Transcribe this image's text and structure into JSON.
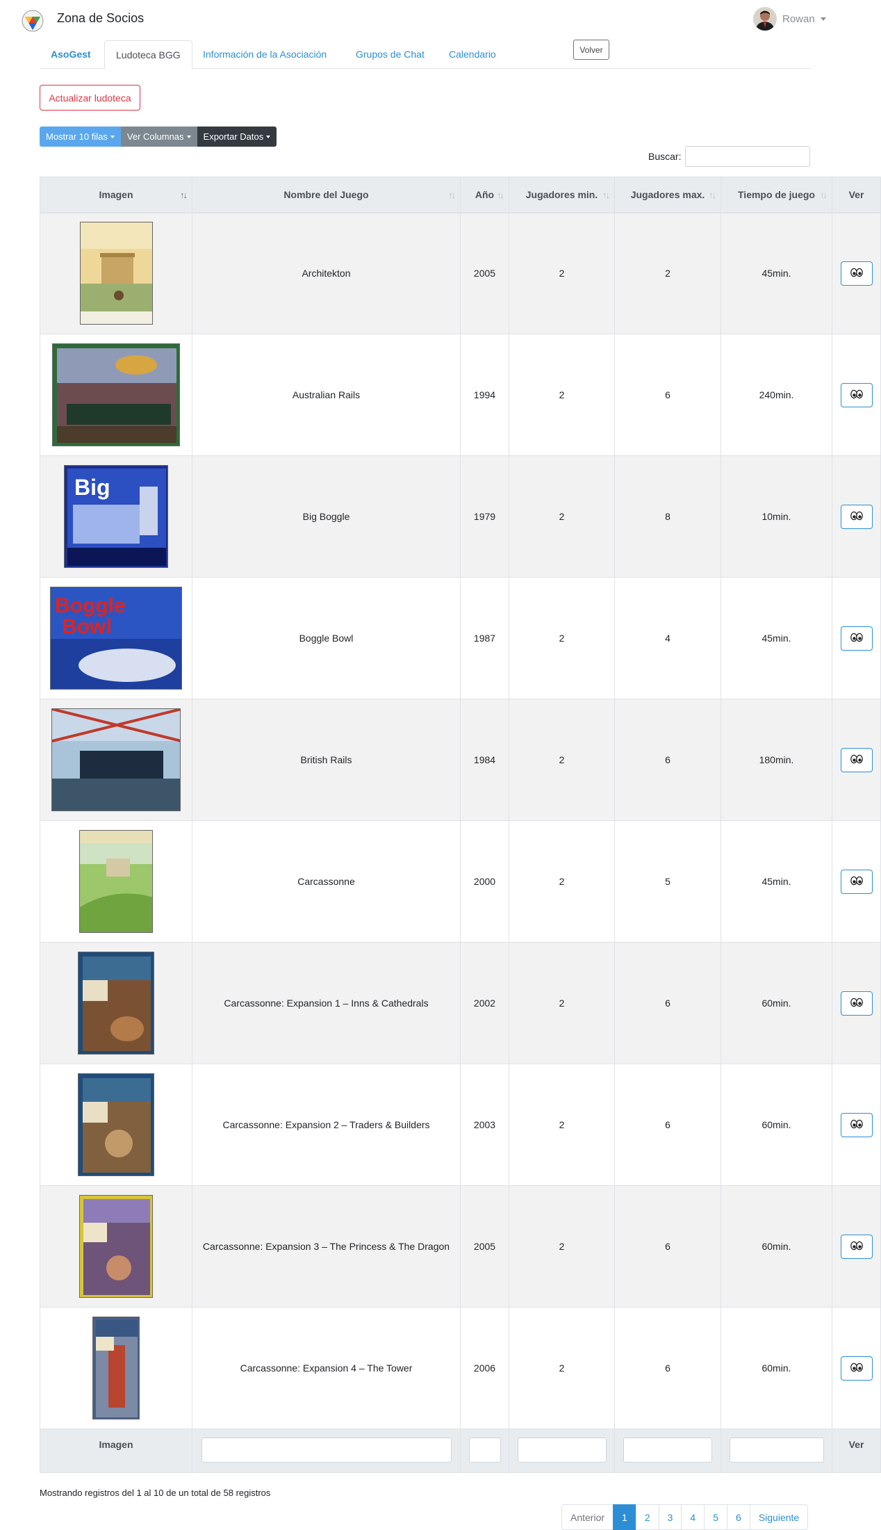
{
  "app": {
    "title": "Zona de Socios"
  },
  "user": {
    "name": "Rowan"
  },
  "tabs": [
    {
      "label": "AsoGest",
      "active": false,
      "bold": true
    },
    {
      "label": "Ludoteca BGG",
      "active": true,
      "bold": false
    },
    {
      "label": "Información de la Asociación",
      "active": false,
      "bold": false
    },
    {
      "label": "Grupos de Chat",
      "active": false,
      "bold": false
    },
    {
      "label": "Calendario",
      "active": false,
      "bold": false
    }
  ],
  "buttons": {
    "back": "Volver",
    "update": "Actualizar ludoteca"
  },
  "toolbar": {
    "rows": "Mostrar 10 filas",
    "columns": "Ver Columnas",
    "export": "Exportar Datos"
  },
  "search": {
    "label": "Buscar:",
    "value": ""
  },
  "table": {
    "headers": [
      "Imagen",
      "Nombre del Juego",
      "Año",
      "Jugadores min.",
      "Jugadores max.",
      "Tiempo de juego",
      "Ver"
    ],
    "footer": {
      "image": "Imagen",
      "view": "Ver"
    },
    "rows": [
      {
        "name": "Architekton",
        "year": "2005",
        "min": "2",
        "max": "2",
        "time": "45min.",
        "cover": "architekton"
      },
      {
        "name": "Australian Rails",
        "year": "1994",
        "min": "2",
        "max": "6",
        "time": "240min.",
        "cover": "rails-au"
      },
      {
        "name": "Big Boggle",
        "year": "1979",
        "min": "2",
        "max": "8",
        "time": "10min.",
        "cover": "big-boggle"
      },
      {
        "name": "Boggle Bowl",
        "year": "1987",
        "min": "2",
        "max": "4",
        "time": "45min.",
        "cover": "boggle-bowl"
      },
      {
        "name": "British Rails",
        "year": "1984",
        "min": "2",
        "max": "6",
        "time": "180min.",
        "cover": "rails-uk"
      },
      {
        "name": "Carcassonne",
        "year": "2000",
        "min": "2",
        "max": "5",
        "time": "45min.",
        "cover": "carc"
      },
      {
        "name": "Carcassonne: Expansion 1 – Inns & Cathedrals",
        "year": "2002",
        "min": "2",
        "max": "6",
        "time": "60min.",
        "cover": "carc-1"
      },
      {
        "name": "Carcassonne: Expansion 2 – Traders & Builders",
        "year": "2003",
        "min": "2",
        "max": "6",
        "time": "60min.",
        "cover": "carc-2"
      },
      {
        "name": "Carcassonne: Expansion 3 – The Princess & The Dragon",
        "year": "2005",
        "min": "2",
        "max": "6",
        "time": "60min.",
        "cover": "carc-3"
      },
      {
        "name": "Carcassonne: Expansion 4 – The Tower",
        "year": "2006",
        "min": "2",
        "max": "6",
        "time": "60min.",
        "cover": "carc-4"
      }
    ]
  },
  "info": "Mostrando registros del 1 al 10 de un total de 58 registros",
  "pagination": {
    "prev": "Anterior",
    "pages": [
      "1",
      "2",
      "3",
      "4",
      "5",
      "6"
    ],
    "next": "Siguiente",
    "current": "1"
  }
}
